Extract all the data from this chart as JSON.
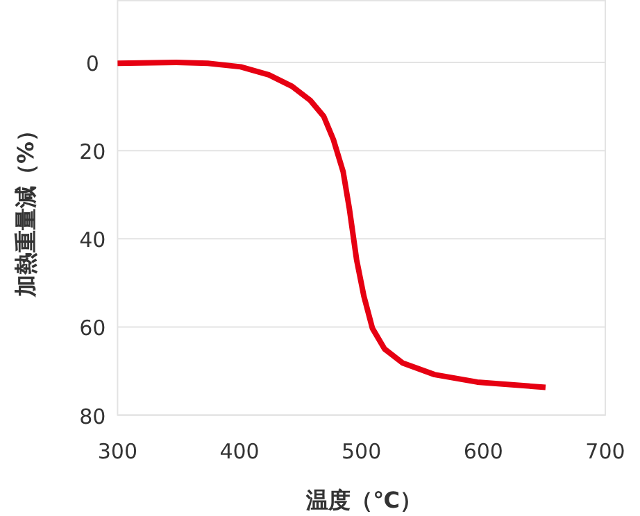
{
  "chart_data": {
    "type": "line",
    "xlabel": "温度（℃）",
    "ylabel": "加熱重量減（%）",
    "xlim": [
      300,
      700
    ],
    "xticks": [
      300,
      400,
      500,
      600,
      700
    ],
    "ylim": [
      80,
      -14
    ],
    "yticks": [
      0,
      20,
      40,
      60,
      80
    ],
    "grid": "y",
    "series": [
      {
        "color": "#e60012",
        "x": [
          300,
          348,
          374,
          401,
          424,
          443,
          458,
          469,
          477,
          485,
          490,
          496,
          502,
          509,
          519,
          534,
          560,
          595,
          651
        ],
        "values": [
          0.2,
          0,
          0.2,
          1,
          2.8,
          5.4,
          8.6,
          12.2,
          17.5,
          24.8,
          33,
          44.7,
          53,
          60.3,
          65,
          68.2,
          70.8,
          72.5,
          73.7
        ]
      }
    ]
  }
}
